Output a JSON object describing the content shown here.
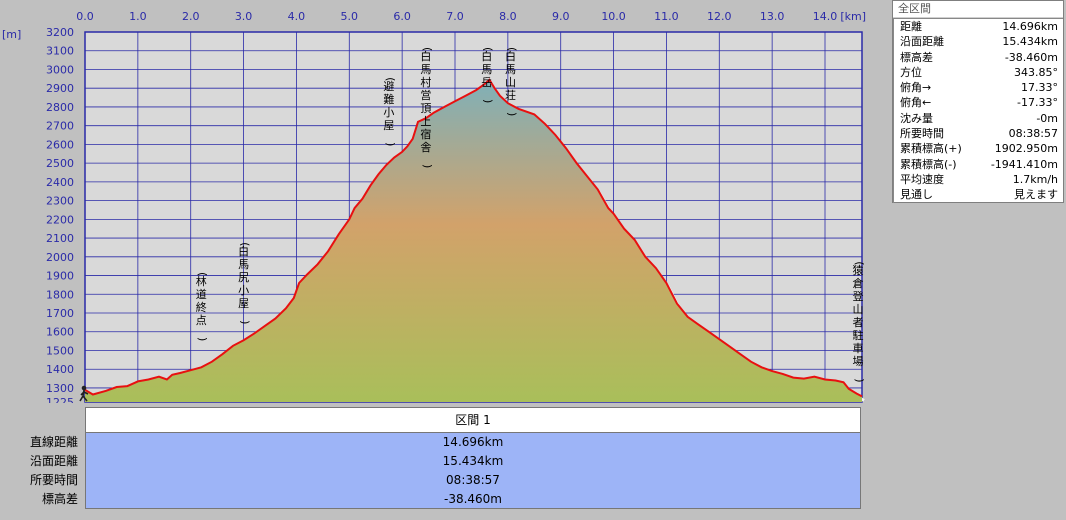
{
  "chart_data": {
    "type": "area",
    "xlabel": "[km]",
    "ylabel": "[m]",
    "xlim": [
      0,
      14.7
    ],
    "ylim": [
      1225,
      3200
    ],
    "x_ticks": [
      "0.0",
      "1.0",
      "2.0",
      "3.0",
      "4.0",
      "5.0",
      "6.0",
      "7.0",
      "8.0",
      "9.0",
      "10.0",
      "11.0",
      "12.0",
      "13.0",
      "14.0"
    ],
    "y_ticks": [
      "3200",
      "3100",
      "3000",
      "2900",
      "2800",
      "2700",
      "2600",
      "2500",
      "2400",
      "2300",
      "2200",
      "2100",
      "2000",
      "1900",
      "1800",
      "1700",
      "1600",
      "1500",
      "1400",
      "1300",
      "1225"
    ],
    "grid": true,
    "series": [
      {
        "color": "#e81010",
        "points": [
          [
            0.0,
            1290
          ],
          [
            0.15,
            1265
          ],
          [
            0.4,
            1285
          ],
          [
            0.6,
            1305
          ],
          [
            0.8,
            1310
          ],
          [
            1.0,
            1335
          ],
          [
            1.2,
            1345
          ],
          [
            1.4,
            1360
          ],
          [
            1.55,
            1345
          ],
          [
            1.65,
            1370
          ],
          [
            1.8,
            1380
          ],
          [
            2.0,
            1395
          ],
          [
            2.2,
            1410
          ],
          [
            2.4,
            1440
          ],
          [
            2.6,
            1480
          ],
          [
            2.8,
            1525
          ],
          [
            3.0,
            1555
          ],
          [
            3.2,
            1590
          ],
          [
            3.4,
            1630
          ],
          [
            3.6,
            1670
          ],
          [
            3.8,
            1725
          ],
          [
            3.95,
            1780
          ],
          [
            4.05,
            1860
          ],
          [
            4.2,
            1905
          ],
          [
            4.4,
            1960
          ],
          [
            4.6,
            2030
          ],
          [
            4.8,
            2120
          ],
          [
            5.0,
            2200
          ],
          [
            5.1,
            2260
          ],
          [
            5.25,
            2310
          ],
          [
            5.4,
            2380
          ],
          [
            5.55,
            2440
          ],
          [
            5.7,
            2490
          ],
          [
            5.85,
            2530
          ],
          [
            6.0,
            2560
          ],
          [
            6.1,
            2590
          ],
          [
            6.2,
            2630
          ],
          [
            6.3,
            2720
          ],
          [
            6.45,
            2740
          ],
          [
            6.6,
            2770
          ],
          [
            6.8,
            2800
          ],
          [
            7.0,
            2830
          ],
          [
            7.2,
            2860
          ],
          [
            7.4,
            2890
          ],
          [
            7.55,
            2920
          ],
          [
            7.65,
            2945
          ],
          [
            7.75,
            2900
          ],
          [
            7.85,
            2860
          ],
          [
            8.0,
            2820
          ],
          [
            8.2,
            2790
          ],
          [
            8.5,
            2760
          ],
          [
            8.7,
            2710
          ],
          [
            8.9,
            2650
          ],
          [
            9.1,
            2580
          ],
          [
            9.3,
            2500
          ],
          [
            9.5,
            2430
          ],
          [
            9.7,
            2360
          ],
          [
            9.9,
            2260
          ],
          [
            10.0,
            2230
          ],
          [
            10.2,
            2150
          ],
          [
            10.4,
            2090
          ],
          [
            10.6,
            2000
          ],
          [
            10.8,
            1940
          ],
          [
            11.0,
            1860
          ],
          [
            11.2,
            1750
          ],
          [
            11.4,
            1680
          ],
          [
            11.6,
            1640
          ],
          [
            11.8,
            1600
          ],
          [
            12.0,
            1560
          ],
          [
            12.2,
            1520
          ],
          [
            12.4,
            1480
          ],
          [
            12.6,
            1440
          ],
          [
            12.8,
            1410
          ],
          [
            13.0,
            1390
          ],
          [
            13.2,
            1375
          ],
          [
            13.4,
            1355
          ],
          [
            13.6,
            1350
          ],
          [
            13.8,
            1360
          ],
          [
            14.0,
            1345
          ],
          [
            14.2,
            1340
          ],
          [
            14.35,
            1330
          ],
          [
            14.45,
            1295
          ],
          [
            14.6,
            1270
          ],
          [
            14.7,
            1255
          ]
        ]
      }
    ],
    "annotations": [
      {
        "text": "(林道終点)",
        "x": 2.2,
        "y": 1540
      },
      {
        "text": "(白馬尻小屋)",
        "x": 3.0,
        "y": 1630
      },
      {
        "text": "(避難小屋)",
        "x": 5.75,
        "y": 2580
      },
      {
        "text": "(白馬村営頂上宿舎)",
        "x": 6.45,
        "y": 2740
      },
      {
        "text": "(白馬岳)",
        "x": 7.6,
        "y": 2945
      },
      {
        "text": "(白馬山荘)",
        "x": 8.05,
        "y": 2890
      },
      {
        "text": "(猿倉登山者駐車場)",
        "x": 14.85,
        "y": 1320
      }
    ]
  },
  "summary": {
    "title": "全区間",
    "rows": [
      {
        "label": "距離",
        "value": "14.696km"
      },
      {
        "label": "沿面距離",
        "value": "15.434km"
      },
      {
        "label": "標高差",
        "value": "-38.460m"
      },
      {
        "label": "方位",
        "value": "343.85°"
      },
      {
        "label": "俯角→",
        "value": "17.33°"
      },
      {
        "label": "俯角←",
        "value": "-17.33°"
      },
      {
        "label": "沈み量",
        "value": "-0m"
      },
      {
        "label": "所要時間",
        "value": "08:38:57"
      },
      {
        "label": "累積標高(+)",
        "value": "1902.950m"
      },
      {
        "label": "累積標高(-)",
        "value": "-1941.410m"
      },
      {
        "label": "平均速度",
        "value": "1.7km/h"
      },
      {
        "label": "見通し",
        "value": "見えます"
      }
    ]
  },
  "section": {
    "header": "区間 1",
    "rows": [
      {
        "label": "直線距離",
        "value": "14.696km"
      },
      {
        "label": "沿面距離",
        "value": "15.434km"
      },
      {
        "label": "所要時間",
        "value": "08:38:57"
      },
      {
        "label": "標高差",
        "value": "-38.460m"
      }
    ]
  },
  "colors": {
    "background": "#c0c0c0",
    "plot_bg": "#d9d9d9",
    "grid": "#2a2aa8",
    "profile_line": "#e81010",
    "fill_top": "#7fb0b8",
    "fill_mid": "#d2a26a",
    "fill_bottom": "#a9bf5a",
    "table_bg": "#9db4f7"
  }
}
